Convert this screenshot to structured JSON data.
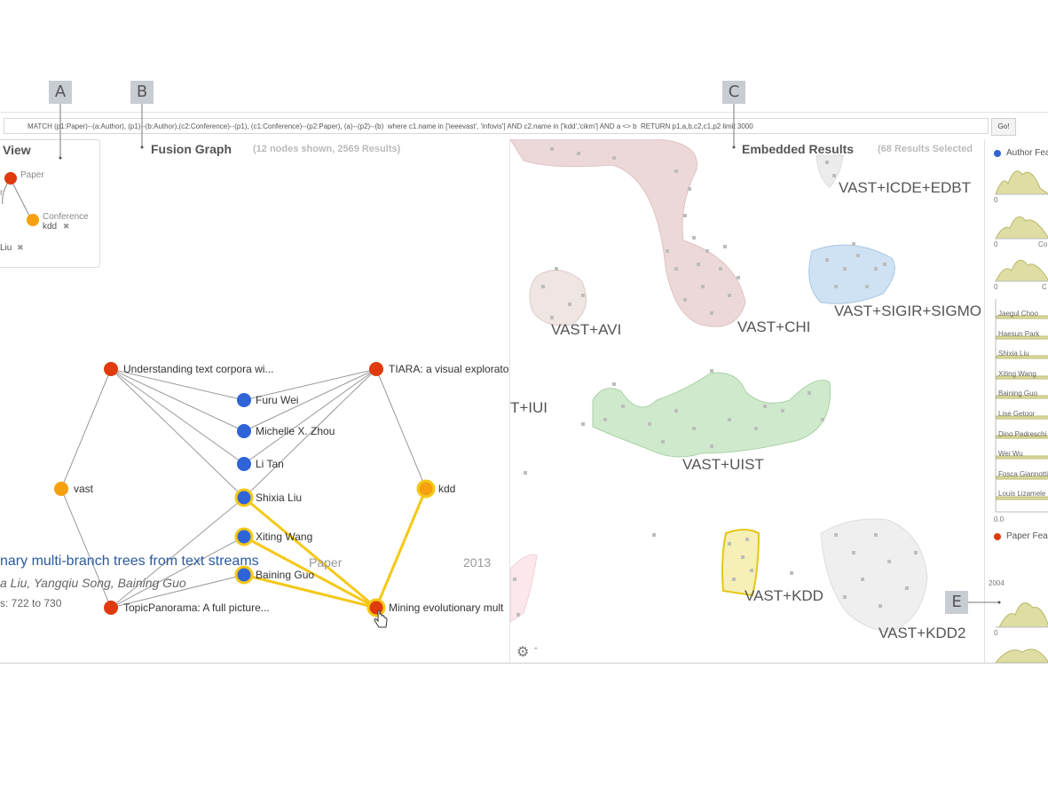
{
  "callouts": [
    "A",
    "B",
    "C",
    "E"
  ],
  "query": {
    "text": "MATCH (p1:Paper)--(a:Author), (p1)--(b:Author),(c2:Conference)--(p1), (c1:Conference)--(p2:Paper), (a)--(p2)--(b)  where c1.name in ['ieeevast', 'infovis'] AND c2.name in ['kdd','cikm'] AND a <> b  RETURN p1,a,b,c2,c1,p2 limit 3000",
    "go_label": "Go!"
  },
  "schema_view": {
    "title": "View",
    "nodes": [
      {
        "label": "Paper",
        "color": "#e03a0e"
      },
      {
        "label": "Conference",
        "value": "kdd",
        "color": "#f5a00f"
      }
    ],
    "fragment_left": "r",
    "author_tag": "Liu",
    "remove_icon": "close-icon"
  },
  "fusion_graph": {
    "title": "Fusion Graph",
    "status": "(12 nodes shown, 2569 Results)",
    "nodes": {
      "paper1": "Understanding text corpora wi...",
      "paper2": "TIARA: a visual explorato",
      "paper3": "TopicPanorama: A full picture...",
      "paper4": "Mining evolutionary mult",
      "conf_vast": "vast",
      "conf_kdd": "kdd",
      "author1": "Furu Wei",
      "author2": "Michelle X. Zhou",
      "author3": "Li Tan",
      "author4": "Shixia Liu",
      "author5": "Xiting Wang",
      "author6": "Baining Guo"
    },
    "colors": {
      "paper": "#e03a0e",
      "author": "#2f63d8",
      "conference": "#f5a00f",
      "highlight": "#f5c816"
    }
  },
  "detail": {
    "title": "nary multi-branch trees from text streams",
    "type": "Paper",
    "year": "2013",
    "authors": "a Liu, Yangqiu Song, Baining Guo",
    "pages": "s: 722 to 730"
  },
  "embedded": {
    "title": "Embedded Results",
    "status": "(68 Results Selected",
    "clusters": [
      "VAST+ICDE+EDBT",
      "VAST+AVI",
      "VAST+CHI",
      "VAST+SIGIR+SIGMO",
      "T+IUI",
      "VAST+UIST",
      "VAST+KDD",
      "VAST+KDD2"
    ],
    "settings_icon": "gear-icon"
  },
  "features": {
    "author_header": "Author Fea",
    "author_color": "#2f63d8",
    "axis_zero": "0",
    "axis_c1": "Co",
    "axis_c2": "C",
    "authors": [
      "Jaegul Choo",
      "Haesun Park",
      "Shixia Liu",
      "Xiting Wang",
      "Baining Guo",
      "Lise Getoor",
      "Dino Pedreschi",
      "Wei Wu",
      "Fosca Giannotti",
      "Louis Lizamele"
    ],
    "axis_bottom": "0.0",
    "paper_header": "Paper Fea",
    "paper_color": "#e03a0e",
    "year_tick": "2004"
  }
}
